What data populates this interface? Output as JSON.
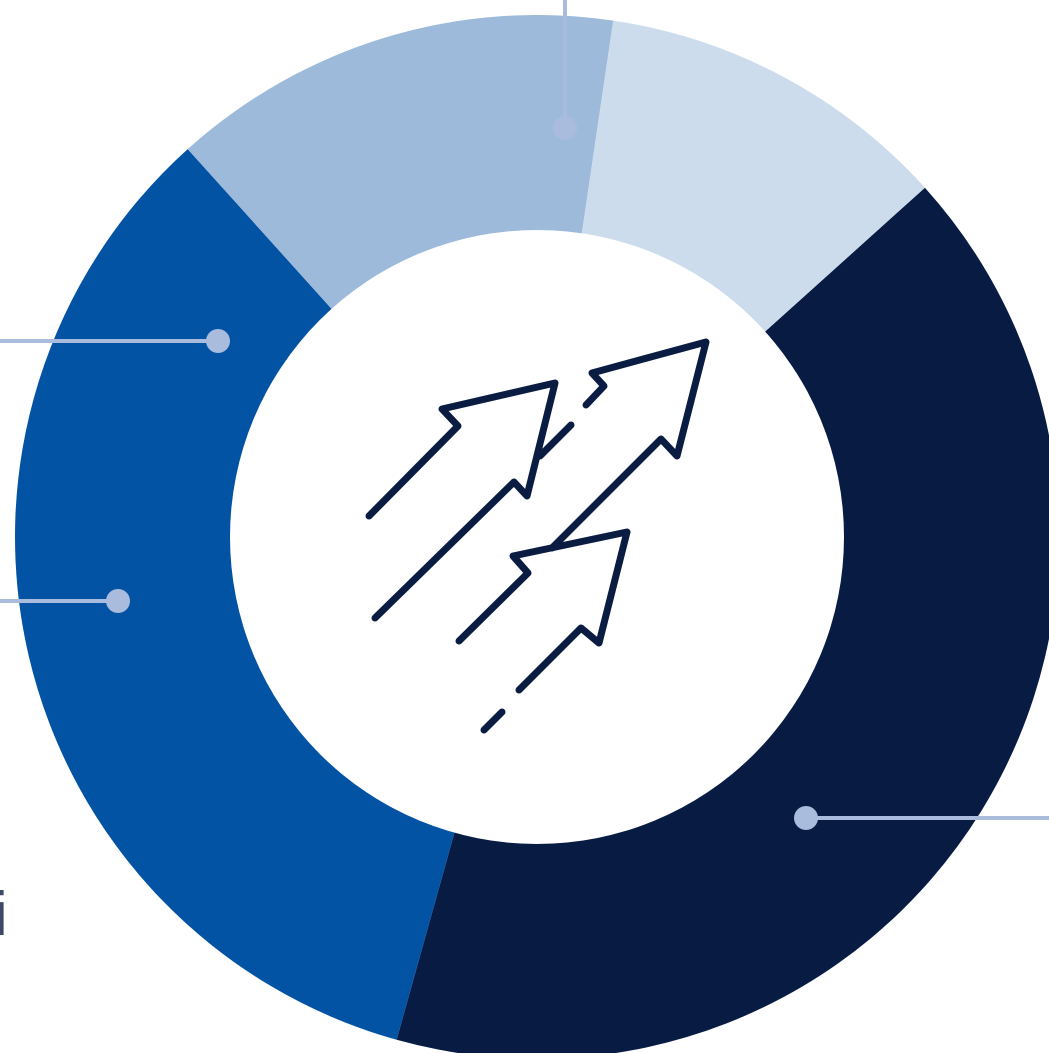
{
  "edge_glyph": "i",
  "colors": {
    "background": "#ffffff",
    "center": "#ffffff",
    "leader": "#aabcdd",
    "icon_stroke": "#0a1c42"
  },
  "chart_data": {
    "type": "pie",
    "donut": true,
    "title": "",
    "center_icon": "rising-arrows-icon",
    "legend": "none",
    "labels_visible": false,
    "start_angle_deg": -42,
    "direction": "clockwise",
    "slices": [
      {
        "key": "navy",
        "value": 41,
        "color": "#081b43"
      },
      {
        "key": "blue",
        "value": 34,
        "color": "#0353a5"
      },
      {
        "key": "mid-blue",
        "value": 14,
        "color": "#9dbadb"
      },
      {
        "key": "light-blue",
        "value": 11,
        "color": "#cddcec"
      }
    ]
  }
}
